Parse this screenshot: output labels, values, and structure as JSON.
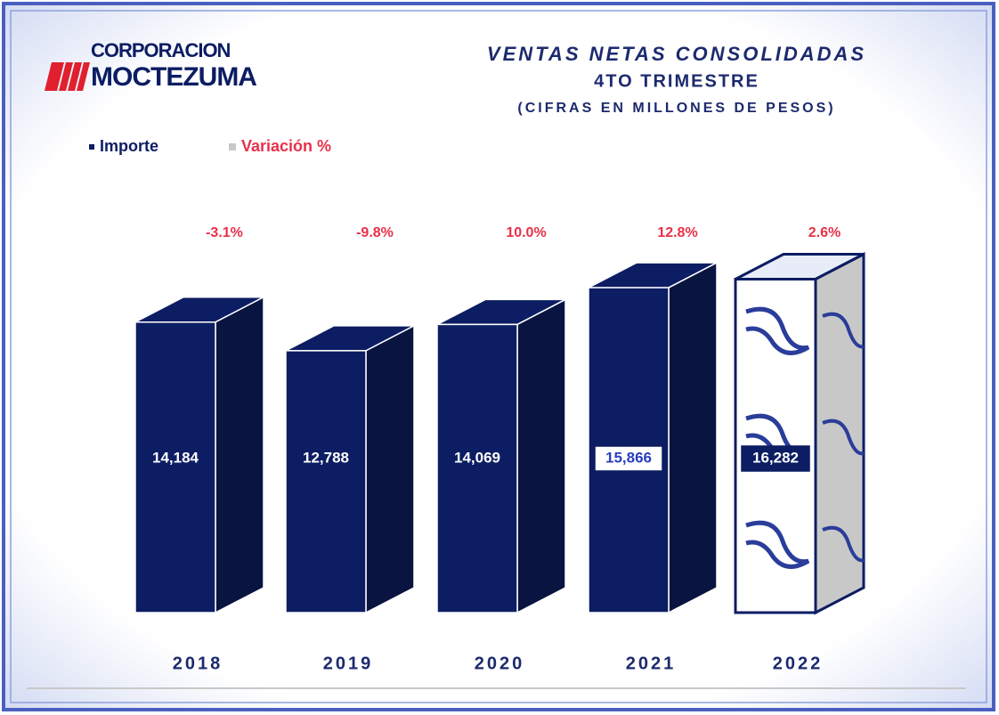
{
  "logo": {
    "line1": "CORPORACION",
    "line2": "MOCTEZUMA"
  },
  "chart_data": {
    "type": "bar3d",
    "title": "VENTAS NETAS CONSOLIDADAS",
    "subtitle": "4TO TRIMESTRE",
    "note": "(CIFRAS EN MILLONES DE PESOS)",
    "categories": [
      "2018",
      "2019",
      "2020",
      "2021",
      "2022"
    ],
    "series": [
      {
        "name": "Importe",
        "color": "#0c1d63",
        "values": [
          14184,
          12788,
          14069,
          15866,
          16282
        ],
        "value_labels": [
          "14,184",
          "12,788",
          "14,069",
          "15,866",
          "16,282"
        ]
      },
      {
        "name": "Variación %",
        "color": "#c8c8c8",
        "values": [
          -3.1,
          -9.8,
          10.0,
          12.8,
          2.6
        ],
        "value_labels": [
          "-3.1%",
          "-9.8%",
          "10.0%",
          "12.8%",
          "2.6%"
        ]
      }
    ]
  }
}
